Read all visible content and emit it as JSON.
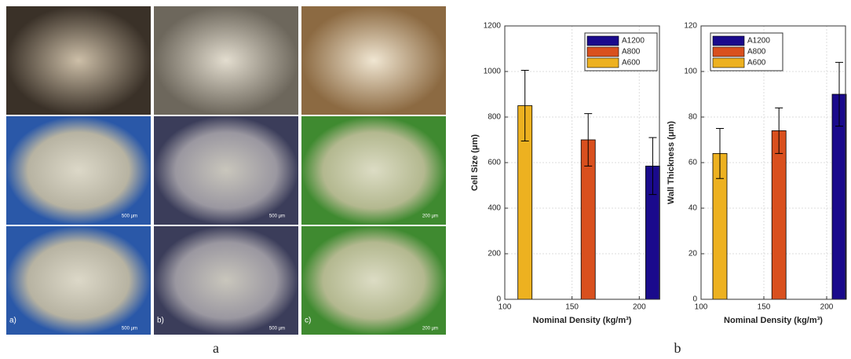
{
  "figure": {
    "panel_labels": [
      "a)",
      "b)",
      "c)"
    ],
    "scale_bars": [
      "500 µm",
      "500 µm",
      "200 µm",
      "500 µm",
      "500 µm",
      "200 µm"
    ],
    "captions": [
      "a",
      "b"
    ]
  },
  "chart_data": [
    {
      "type": "bar",
      "xlabel": "Nominal Density (kg/m³)",
      "ylabel": "Cell Size (μm)",
      "xlim": [
        100,
        215
      ],
      "xticks": [
        100,
        150,
        200
      ],
      "ylim": [
        0,
        1200
      ],
      "yticks": [
        0,
        200,
        400,
        600,
        800,
        1000,
        1200
      ],
      "grid": true,
      "legend": "upper right",
      "series": [
        {
          "name": "A1200",
          "color": "#1a0a8c",
          "x": [
            210
          ],
          "values": [
            585
          ],
          "errors": [
            125
          ]
        },
        {
          "name": "A800",
          "color": "#d9501e",
          "x": [
            162
          ],
          "values": [
            700
          ],
          "errors": [
            115
          ]
        },
        {
          "name": "A600",
          "color": "#edb120",
          "x": [
            115
          ],
          "values": [
            850
          ],
          "errors": [
            155
          ]
        }
      ]
    },
    {
      "type": "bar",
      "xlabel": "Nominal Density (kg/m³)",
      "ylabel": "Wall Thickness (μm)",
      "xlim": [
        100,
        215
      ],
      "xticks": [
        100,
        150,
        200
      ],
      "ylim": [
        0,
        120
      ],
      "yticks": [
        0,
        20,
        40,
        60,
        80,
        100,
        120
      ],
      "grid": true,
      "legend": "upper left",
      "series": [
        {
          "name": "A1200",
          "color": "#1a0a8c",
          "x": [
            210
          ],
          "values": [
            90
          ],
          "errors": [
            14
          ]
        },
        {
          "name": "A800",
          "color": "#d9501e",
          "x": [
            162
          ],
          "values": [
            74
          ],
          "errors": [
            10
          ]
        },
        {
          "name": "A600",
          "color": "#edb120",
          "x": [
            115
          ],
          "values": [
            64
          ],
          "errors": [
            11
          ]
        }
      ]
    }
  ]
}
